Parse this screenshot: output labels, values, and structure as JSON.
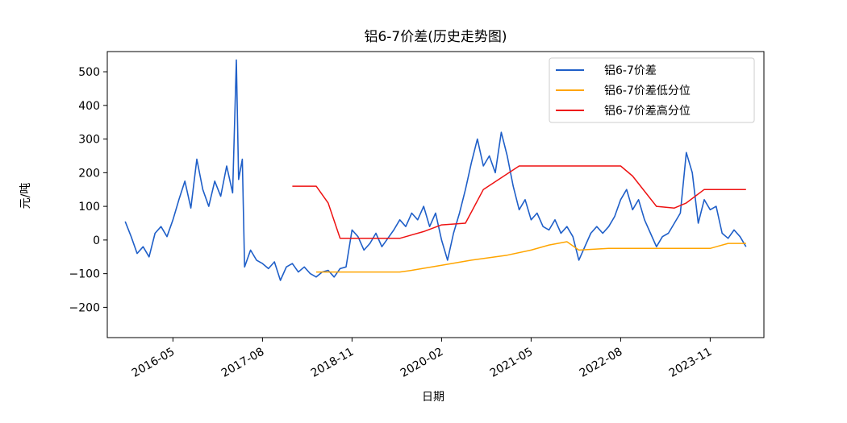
{
  "chart_data": {
    "type": "line",
    "title": "铝6-7价差(历史走势图)",
    "xlabel": "日期",
    "ylabel": "元/吨",
    "ylim": [
      -290,
      560
    ],
    "y_ticks": [
      500,
      400,
      300,
      200,
      100,
      0,
      -100,
      -200
    ],
    "x_ticks": [
      "2016-05",
      "2017-08",
      "2018-11",
      "2020-02",
      "2021-05",
      "2022-08",
      "2023-11"
    ],
    "legend_position": "upper right",
    "grid": false,
    "series": [
      {
        "name": "铝6-7价差",
        "color": "#1f5fc8",
        "points": [
          [
            "2015-09",
            55
          ],
          [
            "2015-10",
            10
          ],
          [
            "2015-11",
            -40
          ],
          [
            "2015-12",
            -20
          ],
          [
            "2016-01",
            -50
          ],
          [
            "2016-02",
            20
          ],
          [
            "2016-03",
            40
          ],
          [
            "2016-04",
            10
          ],
          [
            "2016-05",
            60
          ],
          [
            "2016-06",
            120
          ],
          [
            "2016-07",
            175
          ],
          [
            "2016-08",
            95
          ],
          [
            "2016-09",
            240
          ],
          [
            "2016-10",
            150
          ],
          [
            "2016-11",
            100
          ],
          [
            "2016-12",
            175
          ],
          [
            "2017-01",
            130
          ],
          [
            "2017-02",
            220
          ],
          [
            "2017-03",
            140
          ],
          [
            "2017-03-20",
            535
          ],
          [
            "2017-04",
            180
          ],
          [
            "2017-04-20",
            240
          ],
          [
            "2017-05",
            -80
          ],
          [
            "2017-06",
            -30
          ],
          [
            "2017-07",
            -60
          ],
          [
            "2017-08",
            -70
          ],
          [
            "2017-09",
            -85
          ],
          [
            "2017-10",
            -65
          ],
          [
            "2017-11",
            -120
          ],
          [
            "2017-12",
            -80
          ],
          [
            "2018-01",
            -70
          ],
          [
            "2018-02",
            -95
          ],
          [
            "2018-03",
            -80
          ],
          [
            "2018-04",
            -100
          ],
          [
            "2018-05",
            -110
          ],
          [
            "2018-06",
            -95
          ],
          [
            "2018-07",
            -90
          ],
          [
            "2018-08",
            -110
          ],
          [
            "2018-09",
            -85
          ],
          [
            "2018-10",
            -80
          ],
          [
            "2018-11",
            30
          ],
          [
            "2018-12",
            10
          ],
          [
            "2019-01",
            -30
          ],
          [
            "2019-02",
            -10
          ],
          [
            "2019-03",
            20
          ],
          [
            "2019-04",
            -20
          ],
          [
            "2019-05",
            5
          ],
          [
            "2019-06",
            30
          ],
          [
            "2019-07",
            60
          ],
          [
            "2019-08",
            40
          ],
          [
            "2019-09",
            80
          ],
          [
            "2019-10",
            60
          ],
          [
            "2019-11",
            100
          ],
          [
            "2019-12",
            40
          ],
          [
            "2020-01",
            80
          ],
          [
            "2020-02",
            0
          ],
          [
            "2020-03",
            -60
          ],
          [
            "2020-04",
            20
          ],
          [
            "2020-05",
            80
          ],
          [
            "2020-06",
            150
          ],
          [
            "2020-07",
            230
          ],
          [
            "2020-08",
            300
          ],
          [
            "2020-09",
            220
          ],
          [
            "2020-10",
            250
          ],
          [
            "2020-11",
            200
          ],
          [
            "2020-12",
            320
          ],
          [
            "2021-01",
            250
          ],
          [
            "2021-02",
            160
          ],
          [
            "2021-03",
            90
          ],
          [
            "2021-04",
            120
          ],
          [
            "2021-05",
            60
          ],
          [
            "2021-06",
            80
          ],
          [
            "2021-07",
            40
          ],
          [
            "2021-08",
            30
          ],
          [
            "2021-09",
            60
          ],
          [
            "2021-10",
            20
          ],
          [
            "2021-11",
            40
          ],
          [
            "2021-12",
            10
          ],
          [
            "2022-01",
            -60
          ],
          [
            "2022-02",
            -20
          ],
          [
            "2022-03",
            20
          ],
          [
            "2022-04",
            40
          ],
          [
            "2022-05",
            20
          ],
          [
            "2022-06",
            40
          ],
          [
            "2022-07",
            70
          ],
          [
            "2022-08",
            120
          ],
          [
            "2022-09",
            150
          ],
          [
            "2022-10",
            90
          ],
          [
            "2022-11",
            120
          ],
          [
            "2022-12",
            60
          ],
          [
            "2023-01",
            20
          ],
          [
            "2023-02",
            -20
          ],
          [
            "2023-03",
            10
          ],
          [
            "2023-04",
            20
          ],
          [
            "2023-05",
            50
          ],
          [
            "2023-06",
            80
          ],
          [
            "2023-07",
            260
          ],
          [
            "2023-08",
            200
          ],
          [
            "2023-09",
            50
          ],
          [
            "2023-10",
            120
          ],
          [
            "2023-11",
            90
          ],
          [
            "2023-12",
            100
          ],
          [
            "2024-01",
            20
          ],
          [
            "2024-02",
            5
          ],
          [
            "2024-03",
            30
          ],
          [
            "2024-04",
            10
          ],
          [
            "2024-05",
            -20
          ]
        ]
      },
      {
        "name": "铝6-7价差低分位",
        "color": "#ffa500",
        "points": [
          [
            "2018-05",
            -95
          ],
          [
            "2019-07",
            -95
          ],
          [
            "2019-09",
            -90
          ],
          [
            "2020-02",
            -75
          ],
          [
            "2020-07",
            -60
          ],
          [
            "2021-01",
            -45
          ],
          [
            "2021-05",
            -30
          ],
          [
            "2021-08",
            -15
          ],
          [
            "2021-11",
            -5
          ],
          [
            "2022-01",
            -30
          ],
          [
            "2022-06",
            -25
          ],
          [
            "2023-11",
            -25
          ],
          [
            "2024-02",
            -10
          ],
          [
            "2024-05",
            -10
          ]
        ]
      },
      {
        "name": "铝6-7价差高分位",
        "color": "#ee1111",
        "points": [
          [
            "2018-01",
            160
          ],
          [
            "2018-05",
            160
          ],
          [
            "2018-07",
            110
          ],
          [
            "2018-09",
            5
          ],
          [
            "2019-07",
            5
          ],
          [
            "2019-11",
            25
          ],
          [
            "2020-02",
            45
          ],
          [
            "2020-06",
            50
          ],
          [
            "2020-09",
            150
          ],
          [
            "2021-03",
            220
          ],
          [
            "2022-08",
            220
          ],
          [
            "2022-10",
            190
          ],
          [
            "2023-02",
            100
          ],
          [
            "2023-05",
            95
          ],
          [
            "2023-07",
            110
          ],
          [
            "2023-10",
            150
          ],
          [
            "2024-05",
            150
          ]
        ]
      }
    ]
  }
}
